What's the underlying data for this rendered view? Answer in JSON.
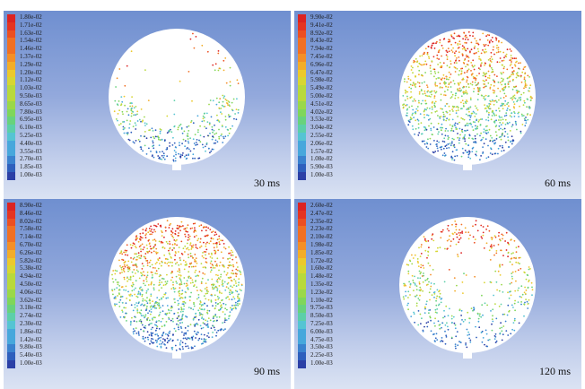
{
  "colormap": [
    "#2b3fa6",
    "#2e5fbd",
    "#3a82cf",
    "#47a7dc",
    "#55c4d3",
    "#5ccfa9",
    "#68d27d",
    "#7fd65b",
    "#9ad84a",
    "#b8d93c",
    "#d7d632",
    "#ecc92c",
    "#f3ad29",
    "#f48f27",
    "#f17024",
    "#ec4f22",
    "#e53422",
    "#dc2322"
  ],
  "panels": [
    {
      "time_label": "30 ms",
      "legend": [
        "1.80e-02",
        "1.71e-02",
        "1.63e-02",
        "1.54e-02",
        "1.46e-02",
        "1.37e-02",
        "1.29e-02",
        "1.20e-02",
        "1.12e-02",
        "1.03e-02",
        "9.50e-03",
        "8.65e-03",
        "7.80e-03",
        "6.95e-03",
        "6.10e-03",
        "5.25e-03",
        "4.40e-03",
        "3.55e-03",
        "2.70e-03",
        "1.85e-03",
        "1.00e-03"
      ],
      "particles": {
        "pattern": "sparse-top-dense-bottom",
        "count": 380
      }
    },
    {
      "time_label": "60 ms",
      "legend": [
        "9.90e-02",
        "9.41e-02",
        "8.92e-02",
        "8.43e-02",
        "7.94e-02",
        "7.45e-02",
        "6.96e-02",
        "6.47e-02",
        "5.98e-02",
        "5.49e-02",
        "5.00e-02",
        "4.51e-02",
        "4.02e-02",
        "3.53e-02",
        "3.04e-02",
        "2.55e-02",
        "2.06e-02",
        "1.57e-02",
        "1.08e-02",
        "5.90e-03",
        "1.00e-03"
      ],
      "particles": {
        "pattern": "filled",
        "count": 1200
      }
    },
    {
      "time_label": "90 ms",
      "legend": [
        "8.90e-02",
        "8.46e-02",
        "8.02e-02",
        "7.58e-02",
        "7.14e-02",
        "6.70e-02",
        "6.26e-02",
        "5.82e-02",
        "5.38e-02",
        "4.94e-02",
        "4.50e-02",
        "4.06e-02",
        "3.62e-02",
        "3.18e-02",
        "2.74e-02",
        "2.30e-02",
        "1.86e-02",
        "1.42e-02",
        "9.80e-03",
        "5.40e-03",
        "1.00e-03"
      ],
      "particles": {
        "pattern": "filled",
        "count": 1300
      }
    },
    {
      "time_label": "120 ms",
      "legend": [
        "2.60e-02",
        "2.47e-02",
        "2.35e-02",
        "2.23e-02",
        "2.10e-02",
        "1.98e-02",
        "1.85e-02",
        "1.72e-02",
        "1.60e-02",
        "1.48e-02",
        "1.35e-02",
        "1.23e-02",
        "1.10e-02",
        "9.75e-03",
        "8.50e-03",
        "7.25e-03",
        "6.00e-03",
        "4.75e-03",
        "3.50e-03",
        "2.25e-03",
        "1.00e-03"
      ],
      "particles": {
        "pattern": "sparse",
        "count": 520
      }
    }
  ]
}
